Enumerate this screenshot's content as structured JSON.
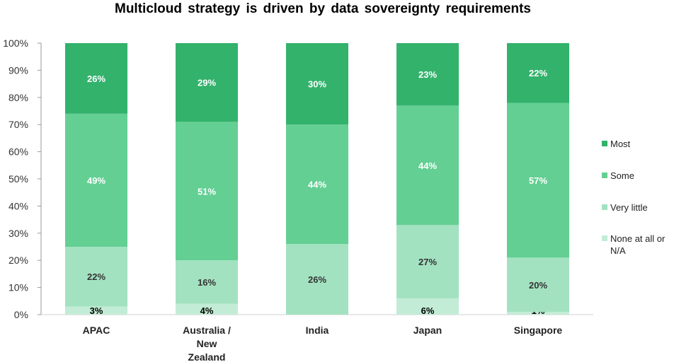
{
  "chart_data": {
    "type": "bar",
    "stacked": true,
    "title": "Multicloud  strategy  is driven by data sovereignty  requirements",
    "categories": [
      "APAC",
      "Australia /\nNew\nZealand",
      "India",
      "Japan",
      "Singapore"
    ],
    "series": [
      {
        "name": "None at all or\nN/A",
        "values": [
          3,
          4,
          0,
          6,
          1
        ],
        "color": "#c3ecd6"
      },
      {
        "name": "Very little",
        "values": [
          22,
          16,
          26,
          27,
          20
        ],
        "color": "#a3e2c1"
      },
      {
        "name": "Some",
        "values": [
          49,
          51,
          44,
          44,
          57
        ],
        "color": "#63cf93"
      },
      {
        "name": "Most",
        "values": [
          26,
          29,
          30,
          23,
          22
        ],
        "color": "#33b26c"
      }
    ],
    "data_labels": [
      [
        "3%",
        "4%",
        "",
        "6%",
        "1%"
      ],
      [
        "22%",
        "16%",
        "26%",
        "27%",
        "20%"
      ],
      [
        "49%",
        "51%",
        "44%",
        "44%",
        "57%"
      ],
      [
        "26%",
        "29%",
        "30%",
        "23%",
        "22%"
      ]
    ],
    "label_colors": [
      "#000000",
      "#333333",
      "#ffffff",
      "#ffffff"
    ],
    "yticks": [
      "0%",
      "10%",
      "20%",
      "30%",
      "40%",
      "50%",
      "60%",
      "70%",
      "80%",
      "90%",
      "100%"
    ],
    "ylim": [
      0,
      100
    ],
    "legend_order": [
      3,
      2,
      1,
      0
    ],
    "legend_position": "right"
  }
}
